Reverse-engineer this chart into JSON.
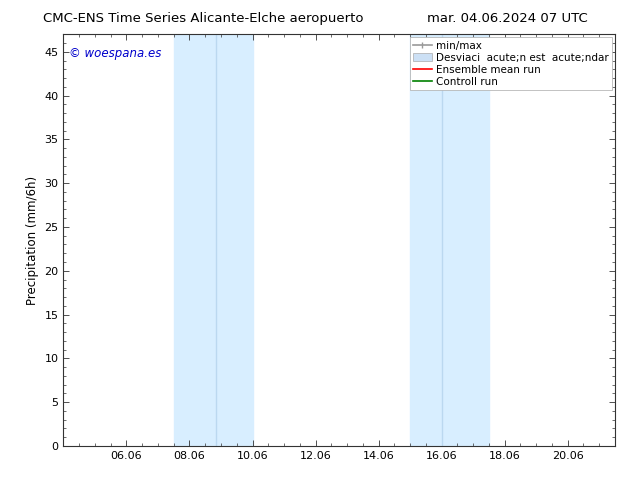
{
  "title_left": "CMC-ENS Time Series Alicante-Elche aeropuerto",
  "title_right": "mar. 04.06.2024 07 UTC",
  "ylabel": "Precipitation (mm/6h)",
  "watermark": "© woespana.es",
  "xtick_labels": [
    "06.06",
    "08.06",
    "10.06",
    "12.06",
    "14.06",
    "16.06",
    "18.06",
    "20.06"
  ],
  "xtick_positions": [
    2,
    4,
    6,
    8,
    10,
    12,
    14,
    16
  ],
  "xlim": [
    0,
    17.5
  ],
  "ylim": [
    0,
    47
  ],
  "ytick_positions": [
    0,
    5,
    10,
    15,
    20,
    25,
    30,
    35,
    40,
    45
  ],
  "shaded_bands": [
    {
      "x_start": 3.5,
      "x_end": 5.0,
      "color": "#ddeeff"
    },
    {
      "x_start": 5.0,
      "x_end": 6.0,
      "color": "#cce8ff"
    },
    {
      "x_start": 11.0,
      "x_end": 12.0,
      "color": "#ddeeff"
    },
    {
      "x_start": 12.0,
      "x_end": 13.5,
      "color": "#cce8ff"
    }
  ],
  "bg_color": "#ffffff",
  "plot_bg_color": "#ffffff",
  "axis_color": "#555555",
  "watermark_color": "#0000cc",
  "title_fontsize": 9.5,
  "label_fontsize": 8.5,
  "tick_fontsize": 8,
  "legend_fontsize": 7.5
}
